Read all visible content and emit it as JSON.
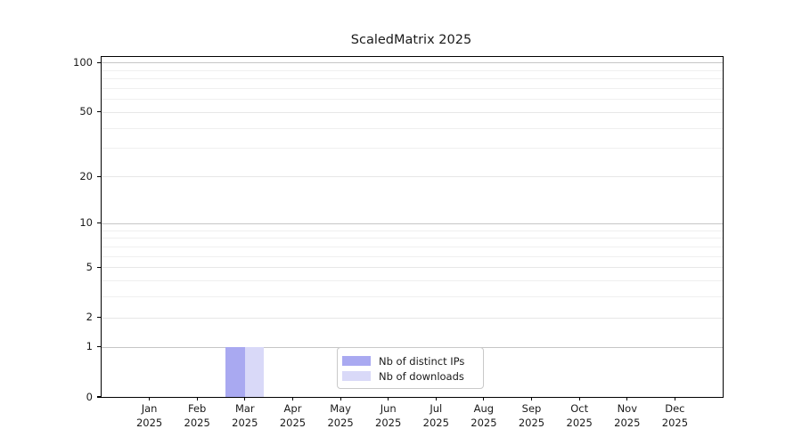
{
  "chart_data": {
    "type": "bar",
    "title": "ScaledMatrix 2025",
    "categories": [
      "Jan",
      "Feb",
      "Mar",
      "Apr",
      "May",
      "Jun",
      "Jul",
      "Aug",
      "Sep",
      "Oct",
      "Nov",
      "Dec"
    ],
    "x_tick_year": "2025",
    "series": [
      {
        "name": "Nb of distinct IPs",
        "color": "#a9a9f1",
        "values": [
          0,
          0,
          1,
          0,
          0,
          0,
          0,
          0,
          0,
          0,
          0,
          0
        ]
      },
      {
        "name": "Nb of downloads",
        "color": "#d9d9f8",
        "values": [
          0,
          0,
          1,
          0,
          0,
          0,
          0,
          0,
          0,
          0,
          0,
          0
        ]
      }
    ],
    "y_scale": "log1p",
    "ylim": [
      0,
      108
    ],
    "y_tick_labels": [
      100,
      50,
      20,
      10,
      5,
      2,
      1,
      0
    ],
    "y_grid_strong": [
      1,
      10,
      100
    ],
    "y_grid_light": [
      2,
      5,
      20,
      50
    ],
    "y_grid_minor": [
      3,
      4,
      6,
      7,
      8,
      9,
      30,
      40,
      60,
      70,
      80,
      90
    ],
    "grid": true,
    "legend_position": "lower center",
    "colors": {
      "grid_strong": "#c6c6c6",
      "grid_light": "#e7e7e7",
      "grid_minor": "#efefef",
      "spine": "#000000",
      "text": "#1a1a1a"
    }
  }
}
